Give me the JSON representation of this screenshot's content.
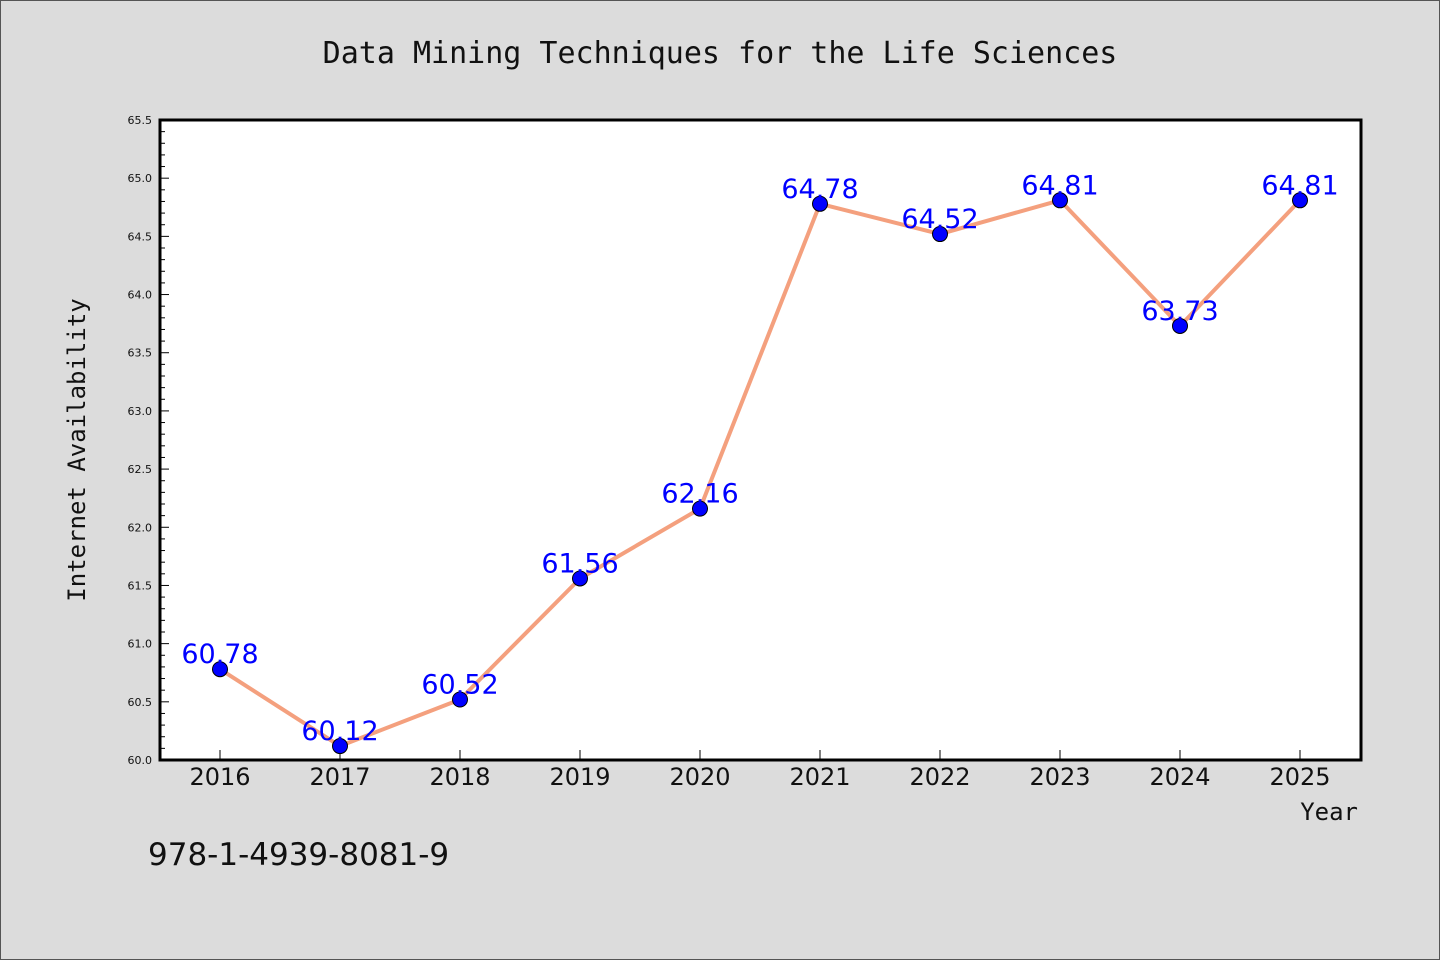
{
  "chart_data": {
    "type": "line",
    "title": "Data Mining Techniques for the Life Sciences",
    "xlabel": "Year",
    "ylabel": "Internet Availability",
    "x": [
      "2016",
      "2017",
      "2018",
      "2019",
      "2020",
      "2021",
      "2022",
      "2023",
      "2024",
      "2025"
    ],
    "series": [
      {
        "values": [
          60.78,
          60.12,
          60.52,
          61.56,
          62.16,
          64.78,
          64.52,
          64.81,
          63.73,
          64.81
        ],
        "data_labels": [
          "60.78",
          "60.12",
          "60.52",
          "61.56",
          "62.16",
          "64.78",
          "64.52",
          "64.81",
          "63.73",
          "64.81"
        ],
        "line_color": "#f4a07e",
        "marker_color": "#0000ff"
      }
    ],
    "ylim": [
      60.0,
      65.5
    ],
    "yticks": [
      "60.0",
      "60.5",
      "61.0",
      "61.5",
      "62.0",
      "62.5",
      "63.0",
      "63.5",
      "64.0",
      "64.5",
      "65.0",
      "65.5"
    ],
    "grid": false,
    "legend": "none"
  },
  "footer": {
    "isbn": "978-1-4939-8081-9"
  },
  "colors": {
    "background": "#dcdcdc",
    "plot_background": "#ffffff",
    "label_color": "#0000ff"
  }
}
